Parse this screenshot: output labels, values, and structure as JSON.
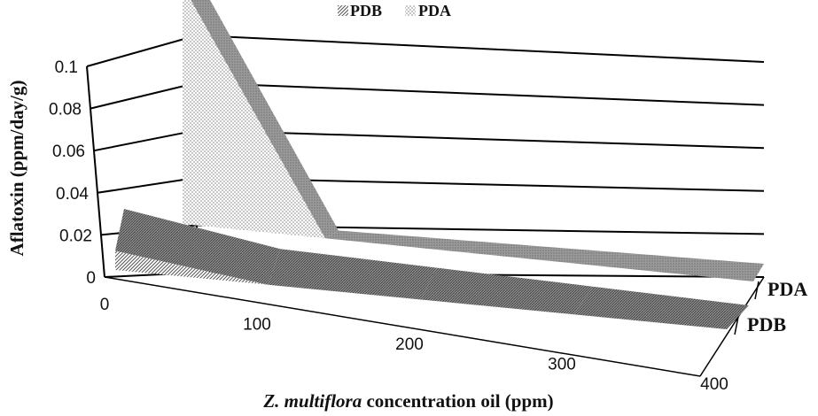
{
  "chart_data": {
    "type": "area",
    "variant": "3d",
    "xlabel_italic": "Z. multiflora",
    "xlabel_rest": " concentration oil (ppm)",
    "ylabel": "Aflatoxin (ppm/day/g)",
    "x": [
      0,
      100,
      200,
      300,
      400
    ],
    "x_tick_labels": [
      "0",
      "100",
      "200",
      "300",
      "400"
    ],
    "y_tick_labels": [
      "0",
      "0.02",
      "0.04",
      "0.06",
      "0.08",
      "0.1"
    ],
    "ylim": [
      0,
      0.1
    ],
    "grid": true,
    "legend_position": "top",
    "series": [
      {
        "name": "PDB",
        "values": [
          0.012,
          0.0,
          0.0,
          0.0,
          0.0
        ],
        "pattern": "diagonal-hatch"
      },
      {
        "name": "PDA",
        "values": [
          0.11,
          0.0,
          0.0,
          0.0,
          0.0
        ],
        "pattern": "dots"
      }
    ],
    "depth_labels": [
      "PDA",
      "PDB"
    ]
  }
}
